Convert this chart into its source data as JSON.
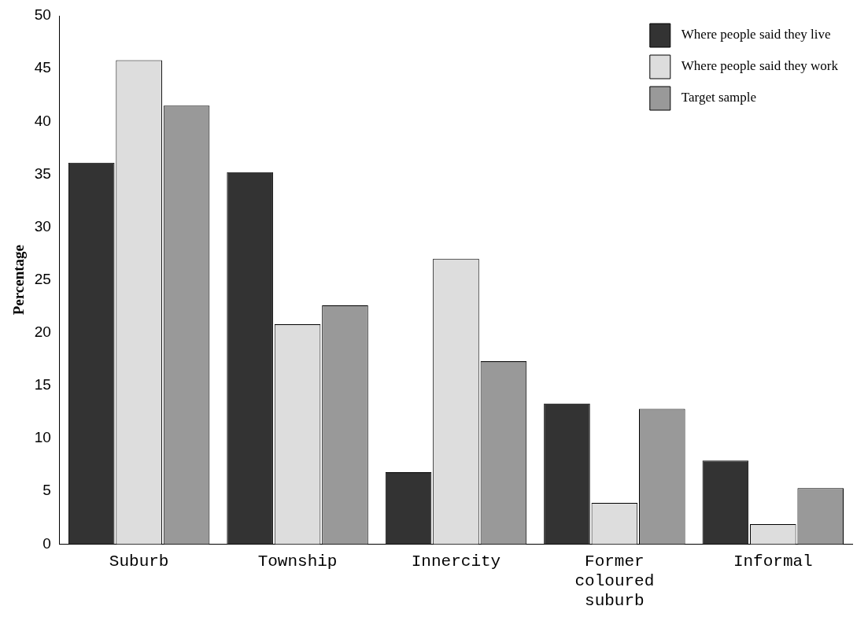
{
  "chart_data": {
    "type": "bar",
    "ylabel": "Percentage",
    "categories": [
      "Suburb",
      "Township",
      "Innercity",
      "Former coloured suburb",
      "Informal"
    ],
    "series": [
      {
        "name": "Where people said they live",
        "color": "#333333",
        "values": [
          36.1,
          35.2,
          6.8,
          13.3,
          7.9
        ]
      },
      {
        "name": "Where people said they work",
        "color": "#dddddd",
        "values": [
          45.8,
          20.8,
          27.0,
          3.9,
          1.9
        ]
      },
      {
        "name": "Target sample",
        "color": "#999999",
        "values": [
          41.5,
          22.6,
          17.3,
          12.8,
          5.3
        ]
      }
    ],
    "ylim": [
      0,
      50
    ],
    "yticks": [
      0,
      5,
      10,
      15,
      20,
      25,
      30,
      35,
      40,
      45,
      50
    ],
    "grid": false,
    "legend": "top right"
  }
}
